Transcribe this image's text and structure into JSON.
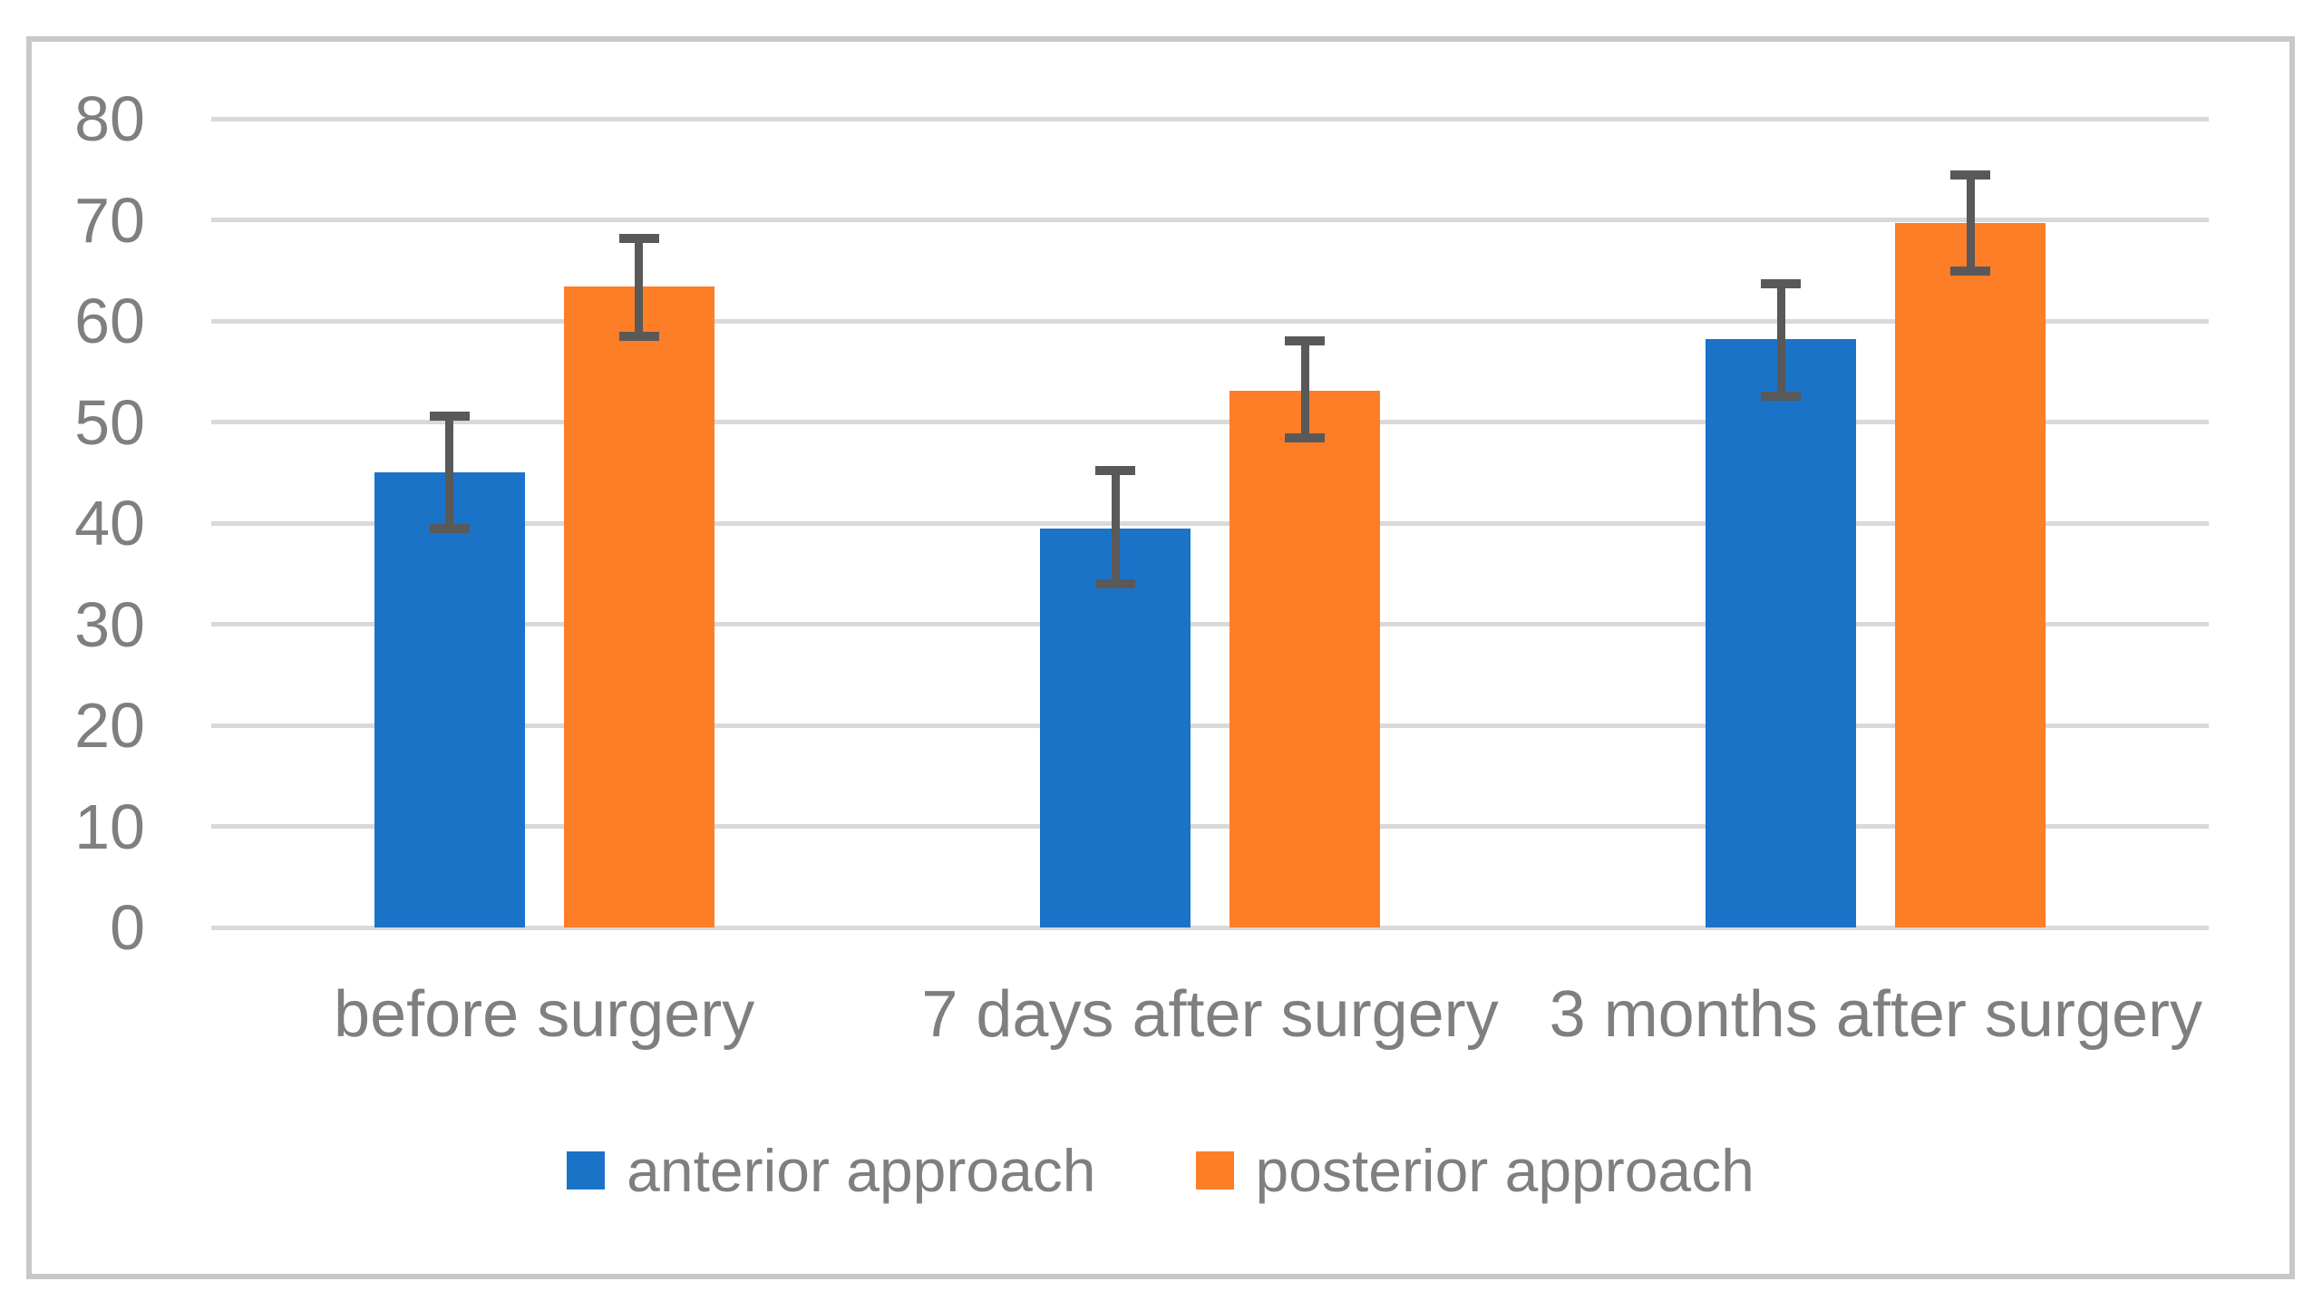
{
  "chart_data": {
    "type": "bar",
    "title": "",
    "xlabel": "",
    "ylabel": "",
    "categories": [
      "before surgery",
      "7 days after surgery",
      "3 months after surgery"
    ],
    "series": [
      {
        "name": "anterior approach",
        "color": "#1B73C8",
        "values": [
          45.0,
          39.5,
          58.2
        ],
        "error_low": [
          39.5,
          34.0,
          52.6
        ],
        "error_high": [
          50.6,
          45.2,
          63.7
        ]
      },
      {
        "name": "posterior approach",
        "color": "#FD7E27",
        "values": [
          63.4,
          53.1,
          69.7
        ],
        "error_low": [
          58.5,
          48.4,
          64.9
        ],
        "error_high": [
          68.2,
          58.0,
          74.4
        ]
      }
    ],
    "ylim": [
      0,
      80
    ],
    "yticks": [
      0,
      10,
      20,
      30,
      40,
      50,
      60,
      70,
      80
    ],
    "grid": true,
    "legend_position": "bottom",
    "colors": {
      "gridline": "#D9D9D9",
      "axis_text": "#7F7F7F",
      "error_bar": "#595959",
      "frame_border": "#C8C8C8",
      "background": "#FFFFFF"
    }
  }
}
